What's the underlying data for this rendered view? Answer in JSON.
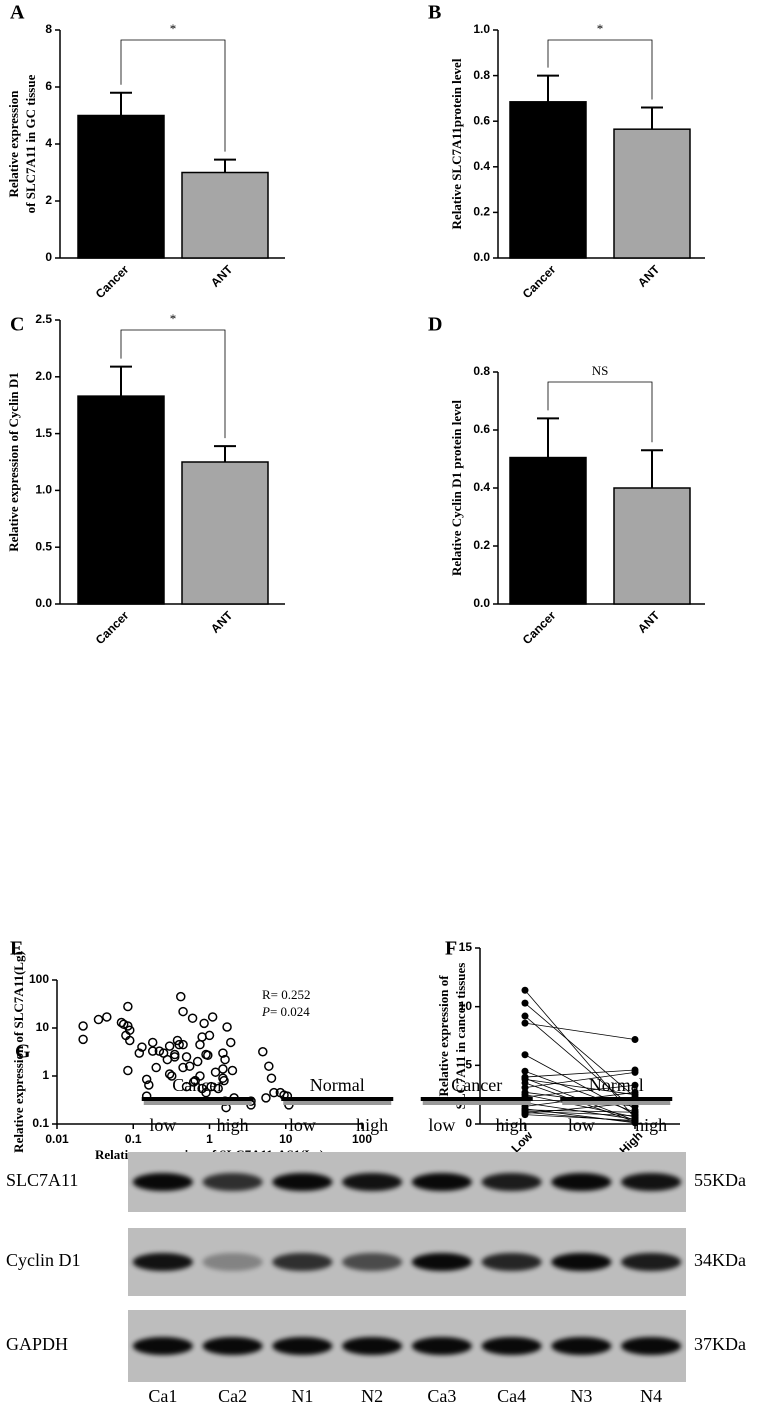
{
  "chart_data": [
    {
      "type": "bar",
      "panel": "A",
      "categories": [
        "Cancer",
        "ANT"
      ],
      "values": [
        5.0,
        3.0
      ],
      "errors": [
        0.8,
        0.45
      ],
      "colors": [
        "#000000",
        "#a6a6a6"
      ],
      "ylim": [
        0,
        8
      ],
      "yticks": [
        0,
        2,
        4,
        6,
        8
      ],
      "ylabel": [
        "Relative expression",
        "of SLC7A11  in GC tissue"
      ],
      "annotation": "*"
    },
    {
      "type": "bar",
      "panel": "B",
      "categories": [
        "Cancer",
        "ANT"
      ],
      "values": [
        0.685,
        0.565
      ],
      "errors": [
        0.115,
        0.095
      ],
      "colors": [
        "#000000",
        "#a6a6a6"
      ],
      "ylim": [
        0,
        1.0
      ],
      "yticks": [
        {
          "value": 0,
          "label": "0.0"
        },
        0.2,
        0.4,
        0.6,
        0.8,
        {
          "value": 1,
          "label": "1.0"
        }
      ],
      "ylabel": [
        "Relative SLC7A11protein level"
      ],
      "annotation": "*"
    },
    {
      "type": "bar",
      "panel": "C",
      "categories": [
        "Cancer",
        "ANT"
      ],
      "values": [
        1.83,
        1.25
      ],
      "errors": [
        0.26,
        0.14
      ],
      "colors": [
        "#000000",
        "#a6a6a6"
      ],
      "ylim": [
        0,
        2.5
      ],
      "yticks": [
        {
          "value": 0,
          "label": "0.0"
        },
        0.5,
        {
          "value": 1,
          "label": "1.0"
        },
        1.5,
        {
          "value": 2,
          "label": "2.0"
        },
        2.5
      ],
      "ylabel": [
        "Relative expression of Cyclin D1"
      ],
      "annotation": "*"
    },
    {
      "type": "bar",
      "panel": "D",
      "categories": [
        "Cancer",
        "ANT"
      ],
      "values": [
        0.505,
        0.4
      ],
      "errors": [
        0.135,
        0.13
      ],
      "colors": [
        "#000000",
        "#a6a6a6"
      ],
      "ylim": [
        0,
        0.8
      ],
      "yticks": [
        {
          "value": 0,
          "label": "0.0"
        },
        0.2,
        0.4,
        0.6,
        0.8
      ],
      "ylabel": [
        "Relative Cyclin D1 protein level"
      ],
      "annotation": "NS"
    },
    {
      "type": "scatter",
      "panel": "E",
      "log_x": true,
      "log_y": true,
      "xlim": [
        0.01,
        100
      ],
      "ylim": [
        0.1,
        100
      ],
      "xticks": [
        0.01,
        0.1,
        1,
        10,
        100
      ],
      "yticks": [
        0.1,
        1,
        10,
        100
      ],
      "xlabel": "Relative expression of SLC7A11-AS1(Lg)",
      "ylabel": [
        "Relative expression of SLC7A11(Lg)"
      ],
      "r_text": "R= 0.252",
      "p_symbol": "P",
      "p_text": "= 0.024",
      "x": [
        0.022,
        0.022,
        0.035,
        0.045,
        0.07,
        0.075,
        0.08,
        0.085,
        0.085,
        0.09,
        0.09,
        0.085,
        0.12,
        0.13,
        0.15,
        0.15,
        0.16,
        0.18,
        0.18,
        0.2,
        0.22,
        0.25,
        0.28,
        0.3,
        0.3,
        0.32,
        0.35,
        0.35,
        0.38,
        0.4,
        0.42,
        0.45,
        0.45,
        0.45,
        0.5,
        0.5,
        0.55,
        0.6,
        0.65,
        0.7,
        0.75,
        0.75,
        0.8,
        0.8,
        0.85,
        0.9,
        0.9,
        0.95,
        1.0,
        1.05,
        1.1,
        1.2,
        1.3,
        1.5,
        1.5,
        1.55,
        1.6,
        1.6,
        1.65,
        1.7,
        1.9,
        2.0,
        2.1,
        3.5,
        3.5,
        5,
        5.5,
        6,
        6.5,
        7,
        8.5,
        9.5,
        10.5,
        11,
        1.5,
        0.62
      ],
      "y": [
        11,
        5.8,
        15,
        17,
        13,
        12,
        7,
        28,
        11,
        9,
        5.5,
        1.3,
        3,
        4,
        0.85,
        0.38,
        0.65,
        5,
        3.3,
        1.5,
        3.3,
        3,
        2.2,
        4.2,
        1.1,
        1,
        2.8,
        2.5,
        5.5,
        4.5,
        45,
        22,
        4.5,
        1.5,
        0.6,
        2.5,
        1.6,
        16,
        0.8,
        2,
        4.5,
        1,
        6.5,
        0.55,
        12.5,
        2.8,
        0.45,
        2.7,
        7,
        0.6,
        17,
        1.2,
        0.55,
        3,
        0.9,
        0.8,
        2.2,
        0.3,
        0.22,
        10.5,
        5,
        1.3,
        0.35,
        0.3,
        0.25,
        3.2,
        0.35,
        1.6,
        0.9,
        0.45,
        0.45,
        0.4,
        0.38,
        0.25,
        1.4,
        0.75
      ]
    },
    {
      "type": "paired",
      "panel": "F",
      "categories": [
        "Low",
        "High"
      ],
      "ylim": [
        0,
        15
      ],
      "yticks": [
        0,
        5,
        10,
        15
      ],
      "ylabel": [
        "Relative expression of",
        "SLC7A11 in cancer tissues"
      ],
      "pairs": [
        [
          11.4,
          0.5
        ],
        [
          10.3,
          2.3
        ],
        [
          8.6,
          7.2
        ],
        [
          9.2,
          1.2
        ],
        [
          5.9,
          0.8
        ],
        [
          4.5,
          1.0
        ],
        [
          4.0,
          4.6
        ],
        [
          3.9,
          0.3
        ],
        [
          3.8,
          2.5
        ],
        [
          3.5,
          0.2
        ],
        [
          3.1,
          4.4
        ],
        [
          2.7,
          1.5
        ],
        [
          2.5,
          0.6
        ],
        [
          2.3,
          3.3
        ],
        [
          2.0,
          2.0
        ],
        [
          1.8,
          0.4
        ],
        [
          1.5,
          2.7
        ],
        [
          1.3,
          0.1
        ],
        [
          1.2,
          1.0
        ],
        [
          1.1,
          0.7
        ],
        [
          1.0,
          0.2
        ],
        [
          0.9,
          1.8
        ],
        [
          0.8,
          0.3
        ]
      ]
    }
  ],
  "blot": {
    "panel": "G",
    "groups": [
      "Cancer",
      "Normal",
      "Cancer",
      "Normal"
    ],
    "lanes": [
      "low",
      "high",
      "low",
      "high",
      "low",
      "high",
      "low",
      "high"
    ],
    "rows": [
      {
        "name": "SLC7A11",
        "size": "55KDa"
      },
      {
        "name": "Cyclin D1",
        "size": "34KDa"
      },
      {
        "name": "GAPDH",
        "size": "37KDa"
      }
    ],
    "samples": [
      "Ca1",
      "Ca2",
      "N1",
      "N2",
      "Ca3",
      "Ca4",
      "N3",
      "N4"
    ]
  }
}
